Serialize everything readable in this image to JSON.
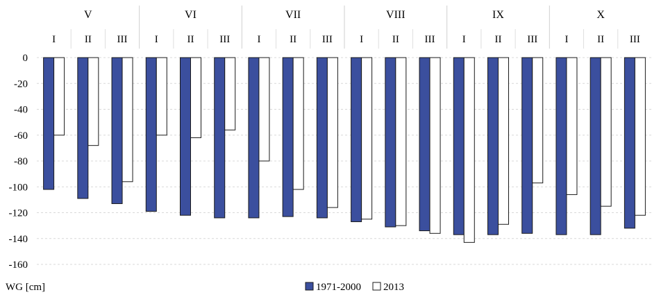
{
  "chart_data": {
    "type": "bar",
    "title": "",
    "xlabel": "",
    "ylabel": "WG [cm]",
    "ylim": [
      -160,
      0
    ],
    "yticks": [
      0,
      -20,
      -40,
      -60,
      -80,
      -100,
      -120,
      -140,
      -160
    ],
    "grid": true,
    "legend_position": "bottom-center",
    "months": [
      "V",
      "VI",
      "VII",
      "VIII",
      "IX",
      "X"
    ],
    "decades": [
      "I",
      "II",
      "III"
    ],
    "series": [
      {
        "name": "1971-2000",
        "color": "#3b4f9e",
        "values": [
          -102,
          -109,
          -113,
          -119,
          -122,
          -124,
          -124,
          -123,
          -124,
          -127,
          -131,
          -134,
          -137,
          -137,
          -136,
          -137,
          -137,
          -132
        ]
      },
      {
        "name": "2013",
        "color": "#ffffff",
        "values": [
          -60,
          -68,
          -96,
          -60,
          -62,
          -56,
          -80,
          -102,
          -116,
          -125,
          -130,
          -136,
          -143,
          -129,
          -97,
          -106,
          -115,
          -122
        ]
      }
    ]
  }
}
